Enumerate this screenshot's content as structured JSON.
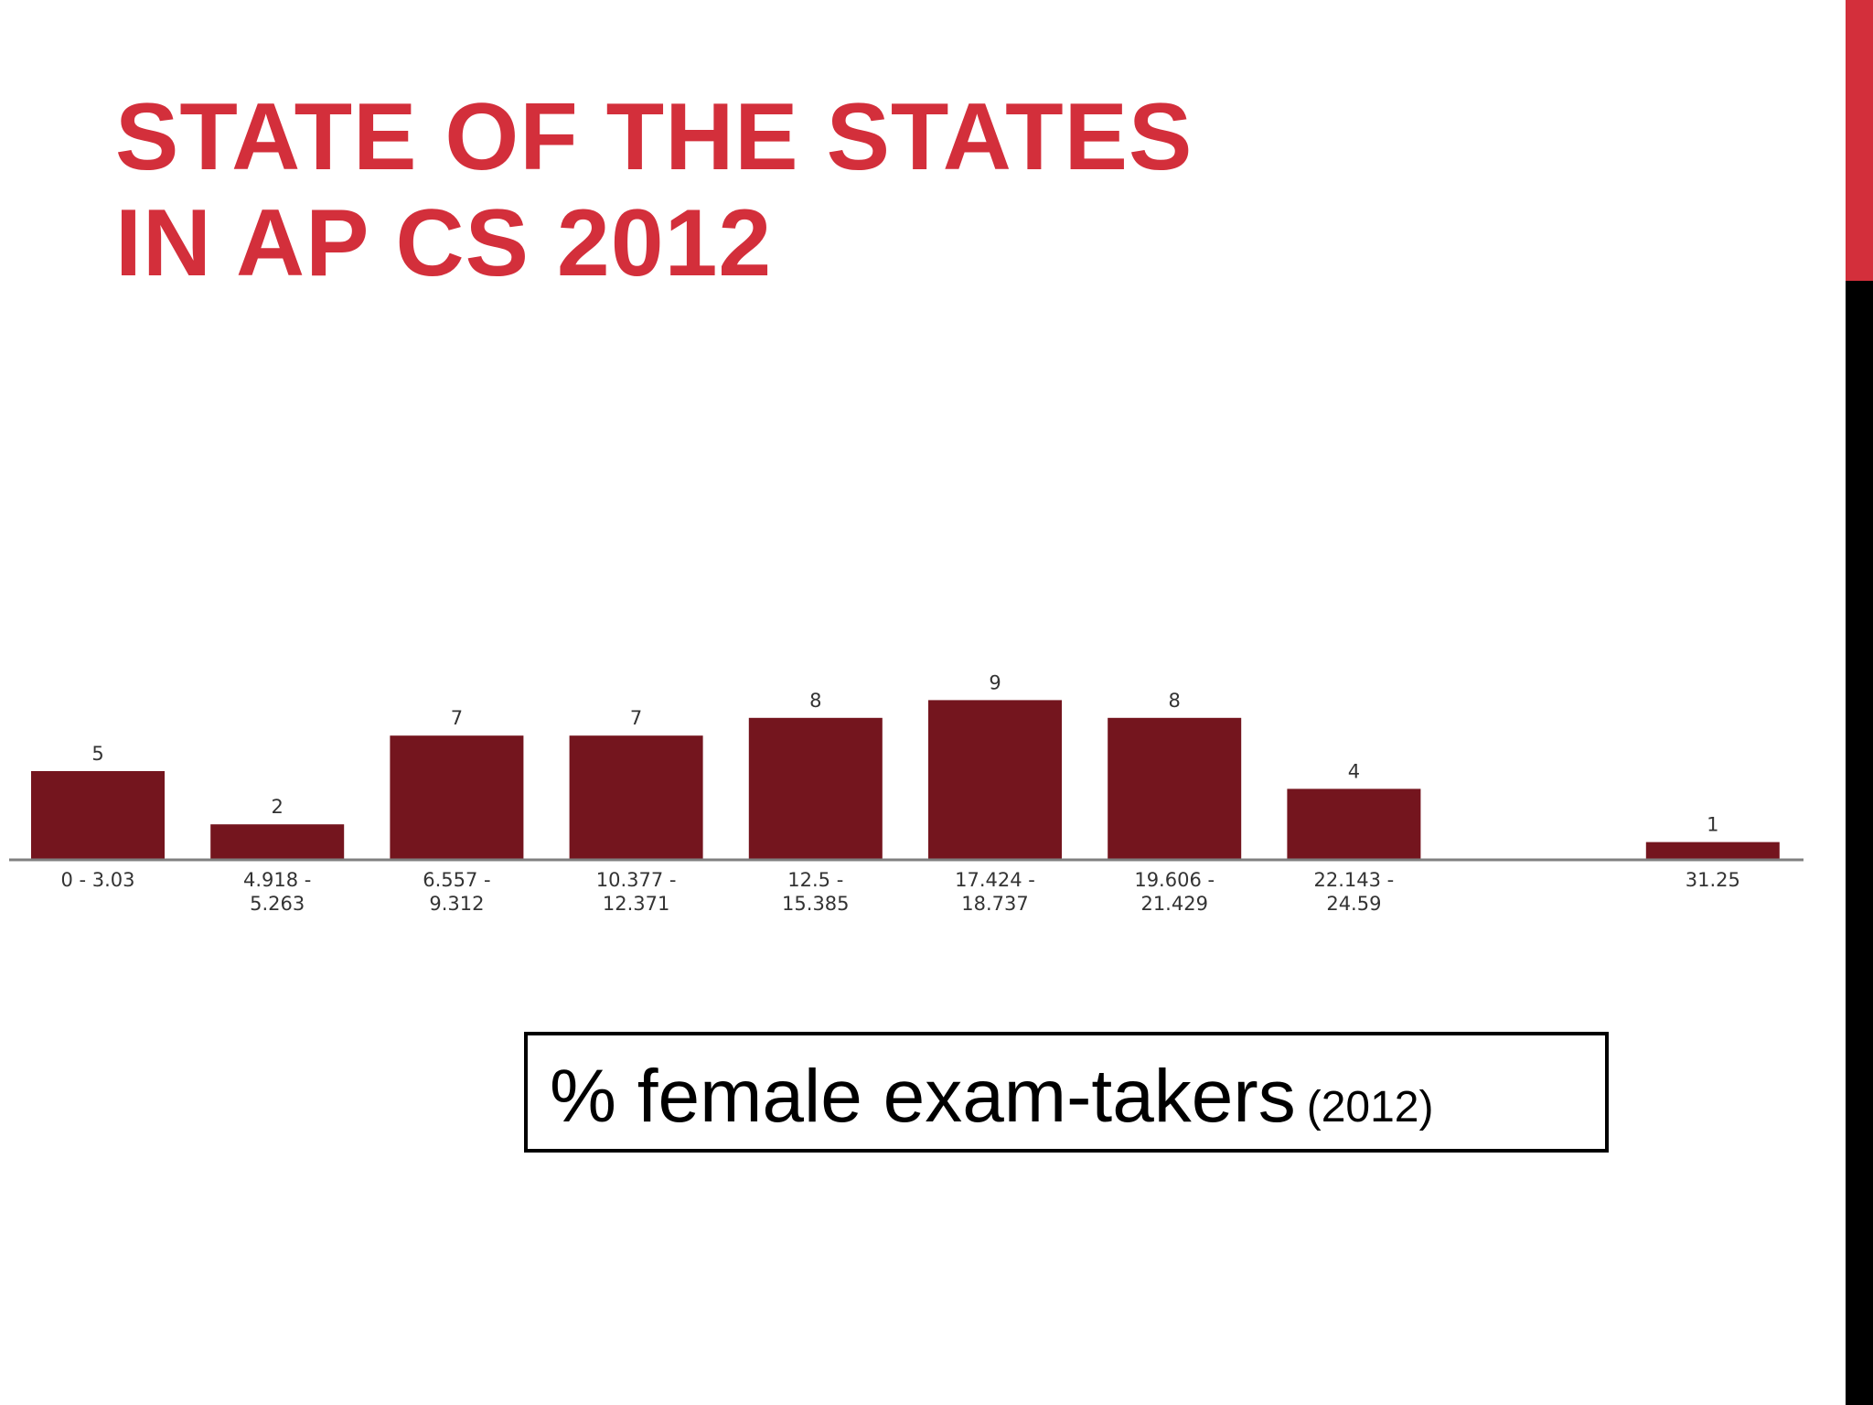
{
  "slide": {
    "title_line1": "STATE OF THE STATES",
    "title_line2": "IN AP CS 2012",
    "caption_main": "% female exam-takers",
    "caption_sub": "(2012)",
    "colors": {
      "accent": "#d32f3b",
      "bar": "#74151e",
      "side_black": "#000000"
    }
  },
  "chart_data": {
    "type": "bar",
    "categories": [
      [
        "0 - 3.03"
      ],
      [
        "4.918 -",
        "5.263"
      ],
      [
        "6.557 -",
        "9.312"
      ],
      [
        "10.377 -",
        "12.371"
      ],
      [
        "12.5 -",
        "15.385"
      ],
      [
        "17.424 -",
        "18.737"
      ],
      [
        "19.606 -",
        "21.429"
      ],
      [
        "22.143 -",
        "24.59"
      ],
      [
        ""
      ],
      [
        "31.25"
      ]
    ],
    "values": [
      5,
      2,
      7,
      7,
      8,
      9,
      8,
      4,
      0,
      1
    ],
    "data_labels": [
      "5",
      "2",
      "7",
      "7",
      "8",
      "9",
      "8",
      "4",
      "",
      "1"
    ],
    "title": "",
    "xlabel": "",
    "ylabel": "",
    "ylim": [
      0,
      9
    ],
    "grid": false,
    "legend": "none"
  }
}
